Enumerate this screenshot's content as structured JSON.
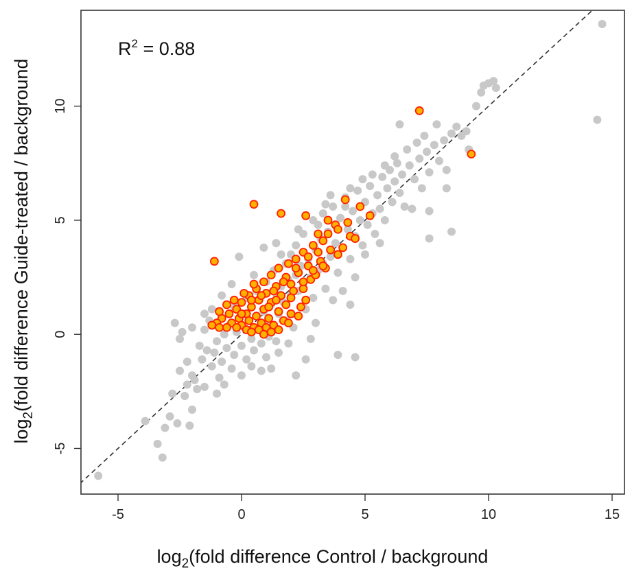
{
  "chart_data": {
    "type": "scatter",
    "xlabel_parts": [
      "log",
      "2",
      "(fold  difference Control / background"
    ],
    "ylabel_parts": [
      "log",
      "2",
      "(fold  difference Guide-treated / background"
    ],
    "annotation": {
      "prefix": "R",
      "sup": "2",
      "suffix": " = 0.88"
    },
    "xlim": [
      -6.5,
      15.5
    ],
    "ylim": [
      -7,
      14.2
    ],
    "x_ticks": [
      -5,
      0,
      5,
      10,
      15
    ],
    "y_ticks": [
      -5,
      0,
      5,
      10
    ],
    "x_tick_labels": [
      "-5",
      "0",
      "5",
      "10",
      "15"
    ],
    "y_tick_labels": [
      "-5",
      "0",
      "5",
      "10"
    ],
    "reference_line": {
      "type": "identity",
      "style": "dashed",
      "color": "#333333"
    },
    "colors": {
      "background_points": "#c8c8c8",
      "highlight_fill": "#ffb000",
      "highlight_stroke": "#ff2000"
    },
    "series": [
      {
        "style": "background",
        "points": [
          [
            -5.8,
            -6.2
          ],
          [
            -3.9,
            -3.8
          ],
          [
            -3.4,
            -4.8
          ],
          [
            -3.2,
            -5.4
          ],
          [
            -3.1,
            -4.1
          ],
          [
            -2.9,
            -3.6
          ],
          [
            -2.6,
            -3.9
          ],
          [
            -2.3,
            -2.7
          ],
          [
            -2.0,
            -3.3
          ],
          [
            -2.1,
            -4.0
          ],
          [
            -2.8,
            -2.6
          ],
          [
            -2.5,
            -1.6
          ],
          [
            -2.2,
            -1.2
          ],
          [
            -2.0,
            -1.8
          ],
          [
            -1.8,
            -2.4
          ],
          [
            -1.6,
            -1.1
          ],
          [
            -1.4,
            -0.7
          ],
          [
            -1.2,
            -1.4
          ],
          [
            -1.0,
            -0.3
          ],
          [
            -0.9,
            -1.9
          ],
          [
            -2.5,
            -0.2
          ],
          [
            -2.4,
            0.1
          ],
          [
            -2.7,
            0.5
          ],
          [
            -2.0,
            0.3
          ],
          [
            -1.7,
            -0.5
          ],
          [
            -1.5,
            0.2
          ],
          [
            -1.3,
            0.6
          ],
          [
            -1.1,
            -0.8
          ],
          [
            -0.8,
            -1.2
          ],
          [
            -0.7,
            0.0
          ],
          [
            -0.6,
            -0.6
          ],
          [
            -0.5,
            0.4
          ],
          [
            -0.3,
            -0.9
          ],
          [
            -0.2,
            0.1
          ],
          [
            0.0,
            -0.5
          ],
          [
            0.1,
            0.3
          ],
          [
            0.2,
            -1.1
          ],
          [
            0.3,
            0.6
          ],
          [
            0.4,
            -0.2
          ],
          [
            0.5,
            -0.7
          ],
          [
            0.6,
            0.8
          ],
          [
            0.7,
            0.2
          ],
          [
            0.8,
            -0.4
          ],
          [
            0.9,
            1.0
          ],
          [
            1.0,
            0.5
          ],
          [
            1.1,
            -0.1
          ],
          [
            1.2,
            1.3
          ],
          [
            1.3,
            0.4
          ],
          [
            1.4,
            1.8
          ],
          [
            1.5,
            0.9
          ],
          [
            1.6,
            2.1
          ],
          [
            1.7,
            1.4
          ],
          [
            1.8,
            0.6
          ],
          [
            1.9,
            2.4
          ],
          [
            2.0,
            1.7
          ],
          [
            2.1,
            0.3
          ],
          [
            2.2,
            2.6
          ],
          [
            2.3,
            1.9
          ],
          [
            2.4,
            3.0
          ],
          [
            2.5,
            2.2
          ],
          [
            2.6,
            1.1
          ],
          [
            2.7,
            3.3
          ],
          [
            2.8,
            2.5
          ],
          [
            2.9,
            1.6
          ],
          [
            3.0,
            3.7
          ],
          [
            3.1,
            2.8
          ],
          [
            3.2,
            4.2
          ],
          [
            3.3,
            3.1
          ],
          [
            3.4,
            2.0
          ],
          [
            3.5,
            4.5
          ],
          [
            3.6,
            3.4
          ],
          [
            3.7,
            5.6
          ],
          [
            3.8,
            4.0
          ],
          [
            3.9,
            2.7
          ],
          [
            4.0,
            5.1
          ],
          [
            4.1,
            3.8
          ],
          [
            4.2,
            6.0
          ],
          [
            4.3,
            4.6
          ],
          [
            4.4,
            3.3
          ],
          [
            4.5,
            5.4
          ],
          [
            4.6,
            4.3
          ],
          [
            4.7,
            6.3
          ],
          [
            4.8,
            5.0
          ],
          [
            4.9,
            3.9
          ],
          [
            5.0,
            5.8
          ],
          [
            5.1,
            4.8
          ],
          [
            5.2,
            6.5
          ],
          [
            5.3,
            5.3
          ],
          [
            5.4,
            4.4
          ],
          [
            5.5,
            6.1
          ],
          [
            5.6,
            5.5
          ],
          [
            5.7,
            6.9
          ],
          [
            5.8,
            5.0
          ],
          [
            5.9,
            6.4
          ],
          [
            6.0,
            7.2
          ],
          [
            6.1,
            5.8
          ],
          [
            6.2,
            6.7
          ],
          [
            6.3,
            7.5
          ],
          [
            6.4,
            6.2
          ],
          [
            6.5,
            7.0
          ],
          [
            6.6,
            5.6
          ],
          [
            6.8,
            7.4
          ],
          [
            7.0,
            6.8
          ],
          [
            7.2,
            7.7
          ],
          [
            7.3,
            6.4
          ],
          [
            7.5,
            8.0
          ],
          [
            7.6,
            7.1
          ],
          [
            7.8,
            8.3
          ],
          [
            8.0,
            7.6
          ],
          [
            8.2,
            8.5
          ],
          [
            8.3,
            7.2
          ],
          [
            8.5,
            8.8
          ],
          [
            8.7,
            9.1
          ],
          [
            8.9,
            8.7
          ],
          [
            9.1,
            8.9
          ],
          [
            9.5,
            10.0
          ],
          [
            9.7,
            10.6
          ],
          [
            9.8,
            10.9
          ],
          [
            10.0,
            11.0
          ],
          [
            10.2,
            11.1
          ],
          [
            10.3,
            10.8
          ],
          [
            14.4,
            9.4
          ],
          [
            14.6,
            13.6
          ],
          [
            6.4,
            9.2
          ],
          [
            7.6,
            5.4
          ],
          [
            7.6,
            4.2
          ],
          [
            8.3,
            6.4
          ],
          [
            8.5,
            4.5
          ],
          [
            9.2,
            8.1
          ],
          [
            6.9,
            5.5
          ],
          [
            5.6,
            4.0
          ],
          [
            5.0,
            3.5
          ],
          [
            4.6,
            2.5
          ],
          [
            4.4,
            1.3
          ],
          [
            4.1,
            1.9
          ],
          [
            3.9,
            -0.9
          ],
          [
            4.6,
            -1.0
          ],
          [
            3.7,
            1.5
          ],
          [
            3.0,
            0.5
          ],
          [
            2.8,
            -0.2
          ],
          [
            2.6,
            -1.1
          ],
          [
            2.2,
            -1.8
          ],
          [
            1.9,
            -0.4
          ],
          [
            1.5,
            -0.8
          ],
          [
            1.4,
            -0.3
          ],
          [
            1.2,
            -1.5
          ],
          [
            1.0,
            -1.0
          ],
          [
            0.8,
            -1.6
          ],
          [
            0.4,
            -1.4
          ],
          [
            0.0,
            -1.8
          ],
          [
            -0.4,
            -1.5
          ],
          [
            -0.7,
            -2.2
          ],
          [
            -1.0,
            -2.6
          ],
          [
            -1.5,
            -2.3
          ],
          [
            -1.9,
            -2.0
          ],
          [
            -2.2,
            -2.2
          ],
          [
            -0.1,
            3.4
          ],
          [
            0.9,
            3.8
          ],
          [
            1.4,
            4.0
          ],
          [
            2.2,
            3.9
          ],
          [
            2.5,
            4.4
          ],
          [
            3.3,
            5.3
          ],
          [
            3.6,
            6.1
          ],
          [
            4.4,
            6.4
          ],
          [
            4.9,
            6.8
          ],
          [
            1.6,
            3.5
          ],
          [
            0.5,
            2.6
          ],
          [
            -0.4,
            2.2
          ],
          [
            -0.8,
            1.7
          ],
          [
            -1.2,
            1.1
          ],
          [
            -1.5,
            0.9
          ],
          [
            -0.3,
            1.2
          ],
          [
            0.2,
            1.6
          ],
          [
            0.6,
            1.9
          ],
          [
            1.0,
            2.3
          ],
          [
            1.3,
            2.8
          ],
          [
            1.8,
            3.1
          ],
          [
            2.0,
            3.5
          ],
          [
            2.3,
            4.6
          ],
          [
            2.9,
            5.0
          ],
          [
            3.1,
            4.8
          ],
          [
            3.4,
            5.7
          ],
          [
            4.2,
            5.6
          ],
          [
            5.3,
            7.0
          ],
          [
            5.8,
            7.4
          ],
          [
            6.2,
            7.8
          ],
          [
            6.7,
            8.1
          ],
          [
            7.1,
            8.4
          ],
          [
            7.4,
            8.7
          ],
          [
            7.9,
            9.2
          ]
        ]
      },
      {
        "style": "highlight",
        "points": [
          [
            7.2,
            9.8
          ],
          [
            9.3,
            7.9
          ],
          [
            0.5,
            5.7
          ],
          [
            1.6,
            5.3
          ],
          [
            -1.1,
            3.2
          ],
          [
            4.2,
            5.9
          ],
          [
            4.8,
            5.6
          ],
          [
            5.2,
            5.2
          ],
          [
            2.6,
            5.2
          ],
          [
            3.5,
            5.0
          ],
          [
            3.8,
            4.8
          ],
          [
            4.4,
            4.3
          ],
          [
            4.6,
            4.2
          ],
          [
            3.1,
            4.4
          ],
          [
            3.3,
            4.1
          ],
          [
            2.9,
            3.9
          ],
          [
            3.6,
            3.7
          ],
          [
            2.5,
            3.6
          ],
          [
            2.2,
            3.3
          ],
          [
            1.9,
            3.1
          ],
          [
            2.7,
            3.0
          ],
          [
            3.2,
            3.2
          ],
          [
            3.9,
            3.5
          ],
          [
            4.1,
            3.8
          ],
          [
            1.5,
            2.9
          ],
          [
            1.2,
            2.6
          ],
          [
            1.8,
            2.5
          ],
          [
            2.3,
            2.7
          ],
          [
            2.8,
            2.4
          ],
          [
            3.4,
            2.9
          ],
          [
            0.9,
            2.3
          ],
          [
            1.4,
            2.1
          ],
          [
            2.0,
            2.2
          ],
          [
            2.5,
            2.0
          ],
          [
            3.0,
            2.6
          ],
          [
            0.6,
            2.0
          ],
          [
            1.0,
            1.8
          ],
          [
            1.6,
            1.7
          ],
          [
            2.1,
            1.9
          ],
          [
            2.6,
            1.5
          ],
          [
            0.3,
            1.7
          ],
          [
            0.7,
            1.5
          ],
          [
            1.2,
            1.4
          ],
          [
            1.8,
            1.3
          ],
          [
            2.4,
            1.2
          ],
          [
            0.0,
            1.4
          ],
          [
            0.4,
            1.2
          ],
          [
            0.9,
            1.1
          ],
          [
            1.5,
            1.0
          ],
          [
            2.0,
            0.9
          ],
          [
            -0.2,
            1.1
          ],
          [
            0.2,
            0.9
          ],
          [
            0.6,
            0.8
          ],
          [
            1.1,
            0.7
          ],
          [
            1.7,
            0.6
          ],
          [
            2.3,
            0.8
          ],
          [
            -0.5,
            0.9
          ],
          [
            -0.1,
            0.7
          ],
          [
            0.3,
            0.6
          ],
          [
            0.8,
            0.5
          ],
          [
            1.3,
            0.4
          ],
          [
            1.9,
            0.5
          ],
          [
            -0.8,
            0.7
          ],
          [
            -0.4,
            0.5
          ],
          [
            0.0,
            0.4
          ],
          [
            0.5,
            0.3
          ],
          [
            1.0,
            0.3
          ],
          [
            1.5,
            0.2
          ],
          [
            -1.0,
            0.5
          ],
          [
            -0.6,
            0.3
          ],
          [
            -0.2,
            0.3
          ],
          [
            0.2,
            0.2
          ],
          [
            0.7,
            0.2
          ],
          [
            1.2,
            0.1
          ],
          [
            -1.2,
            0.4
          ],
          [
            -0.9,
            0.3
          ],
          [
            0.4,
            0.1
          ],
          [
            0.9,
            0.0
          ],
          [
            -0.3,
            1.5
          ],
          [
            0.1,
            1.8
          ],
          [
            0.5,
            2.2
          ],
          [
            -0.6,
            1.3
          ],
          [
            -0.9,
            1.0
          ],
          [
            1.3,
            1.9
          ],
          [
            1.7,
            2.3
          ],
          [
            2.2,
            2.9
          ],
          [
            2.7,
            3.4
          ],
          [
            3.1,
            3.6
          ],
          [
            3.5,
            4.4
          ],
          [
            3.9,
            4.6
          ],
          [
            4.3,
            4.9
          ],
          [
            1.1,
            1.2
          ],
          [
            1.4,
            1.5
          ],
          [
            2.0,
            1.6
          ],
          [
            2.5,
            2.3
          ],
          [
            2.9,
            2.8
          ],
          [
            3.3,
            3.0
          ],
          [
            0.8,
            1.7
          ],
          [
            0.4,
            1.5
          ],
          [
            0.0,
            0.9
          ]
        ]
      }
    ]
  }
}
